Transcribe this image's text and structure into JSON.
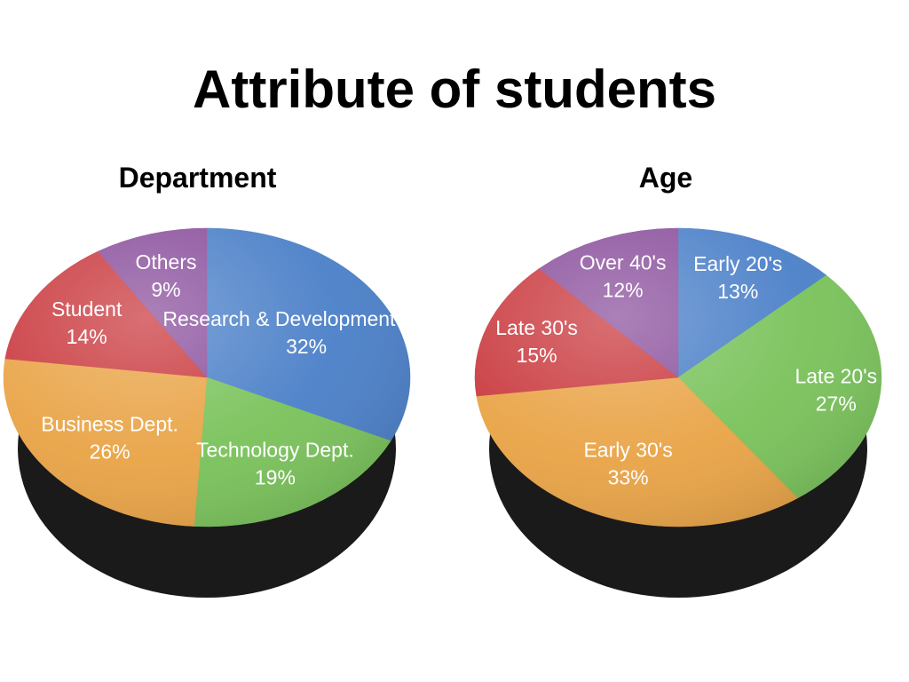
{
  "title": "Attribute of students",
  "colors": {
    "blue": "#4a7fc8",
    "green": "#79c25a",
    "orange": "#e9a345",
    "red": "#c9383d",
    "purple": "#8a4f9c"
  },
  "chart_data": [
    {
      "type": "pie",
      "title": "Department",
      "slices": [
        {
          "label": "Research & Development Dept.",
          "value": 32,
          "pct_label": "32%",
          "color": "#4a7fc8"
        },
        {
          "label": "Technology Dept.",
          "value": 19,
          "pct_label": "19%",
          "color": "#79c25a"
        },
        {
          "label": "Business Dept.",
          "value": 26,
          "pct_label": "26%",
          "color": "#e9a345"
        },
        {
          "label": "Student",
          "value": 14,
          "pct_label": "14%",
          "color": "#c9383d"
        },
        {
          "label": "Others",
          "value": 9,
          "pct_label": "9%",
          "color": "#8a4f9c"
        }
      ]
    },
    {
      "type": "pie",
      "title": "Age",
      "slices": [
        {
          "label": "Early 20's",
          "value": 13,
          "pct_label": "13%",
          "color": "#4a7fc8"
        },
        {
          "label": "Late 20's",
          "value": 27,
          "pct_label": "27%",
          "color": "#79c25a"
        },
        {
          "label": "Early 30's",
          "value": 33,
          "pct_label": "33%",
          "color": "#e9a345"
        },
        {
          "label": "Late 30's",
          "value": 15,
          "pct_label": "15%",
          "color": "#c9383d"
        },
        {
          "label": "Over 40's",
          "value": 12,
          "pct_label": "12%",
          "color": "#8a4f9c"
        }
      ]
    }
  ]
}
